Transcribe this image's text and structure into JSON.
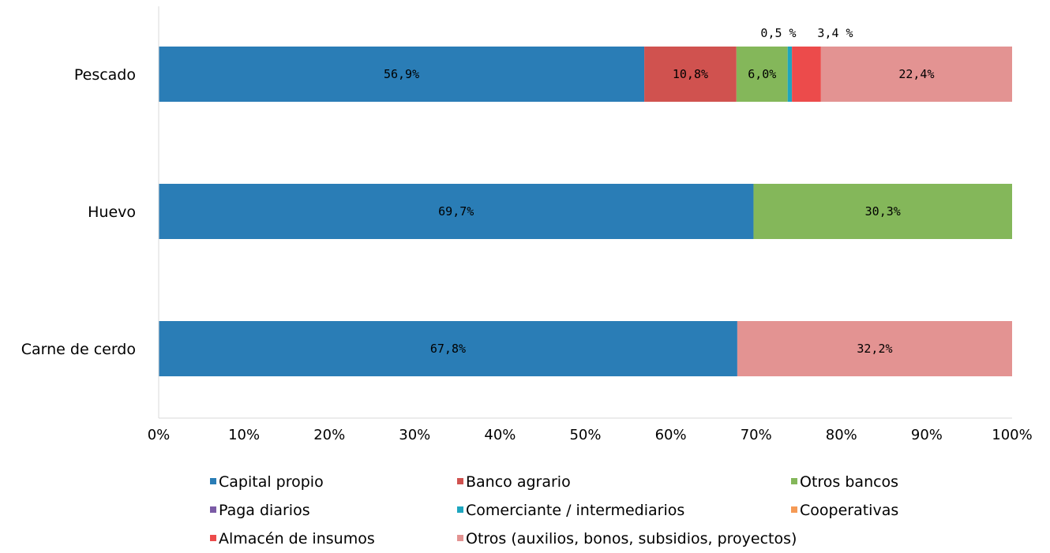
{
  "chart_data": {
    "type": "bar",
    "orientation": "horizontal",
    "stacked": "percent",
    "categories": [
      "Pescado",
      "Huevo",
      "Carne de cerdo"
    ],
    "xlim": [
      0,
      100
    ],
    "x_ticks": [
      "0%",
      "10%",
      "20%",
      "30%",
      "40%",
      "50%",
      "60%",
      "70%",
      "80%",
      "90%",
      "100%"
    ],
    "grid": false,
    "legend_position": "bottom",
    "series": [
      {
        "name": "Capital propio",
        "color": "#2a7db6",
        "values": [
          56.9,
          69.7,
          67.8
        ],
        "labels": [
          "56,9%",
          "69,7%",
          "67,8%"
        ]
      },
      {
        "name": "Banco agrario",
        "color": "#d0524f",
        "values": [
          10.8,
          0,
          0
        ],
        "labels": [
          "10,8%",
          "",
          ""
        ]
      },
      {
        "name": "Otros bancos",
        "color": "#84b75a",
        "values": [
          6.0,
          30.3,
          0
        ],
        "labels": [
          "6,0%",
          "30,3%",
          ""
        ]
      },
      {
        "name": "Paga diarios",
        "color": "#7b5ba6",
        "values": [
          0,
          0,
          0
        ],
        "labels": [
          "",
          "",
          ""
        ]
      },
      {
        "name": "Comerciante / intermediarios",
        "color": "#1ea6bf",
        "values": [
          0.5,
          0,
          0
        ],
        "labels": [
          "",
          "",
          ""
        ]
      },
      {
        "name": "Cooperativas",
        "color": "#f59a55",
        "values": [
          0,
          0,
          0
        ],
        "labels": [
          "",
          "",
          ""
        ]
      },
      {
        "name": "Almacén de insumos",
        "color": "#ec4b4b",
        "values": [
          3.4,
          0,
          0
        ],
        "labels": [
          "",
          "",
          ""
        ]
      },
      {
        "name": "Otros (auxilios, bonos, subsidios, proyectos)",
        "color": "#e39392",
        "values": [
          22.4,
          0,
          32.2
        ],
        "labels": [
          "22,4%",
          "",
          "32,2%"
        ]
      }
    ],
    "annotations": [
      {
        "category": "Pescado",
        "series": "Comerciante / intermediarios",
        "text": "0,5 %"
      },
      {
        "category": "Pescado",
        "series": "Almacén de insumos",
        "text": "3,4 %"
      }
    ]
  }
}
